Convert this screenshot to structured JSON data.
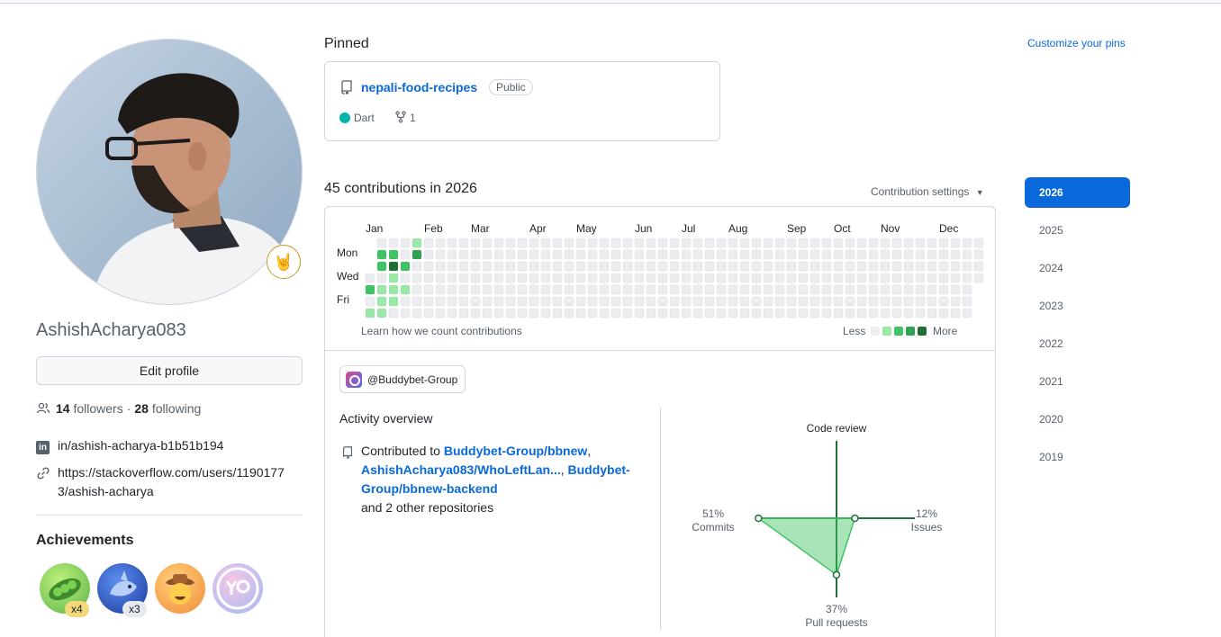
{
  "profile": {
    "username": "AshishAcharya083",
    "edit_label": "Edit profile",
    "followers_count": "14",
    "followers_label": "followers",
    "following_count": "28",
    "following_label": "following",
    "linkedin": "in/ashish-acharya-b1b51b194",
    "link_line1": "https://stackoverflow.com/users/1190177",
    "link_line2": "3/ashish-acharya",
    "status_emoji": "🤘"
  },
  "achievements": {
    "title": "Achievements",
    "badges": [
      {
        "name": "pea-pod",
        "count": "x4"
      },
      {
        "name": "shark",
        "count": "x3"
      },
      {
        "name": "cowboy",
        "count": ""
      },
      {
        "name": "yolo",
        "count": ""
      }
    ]
  },
  "pinned": {
    "title": "Pinned",
    "customize_label": "Customize your pins",
    "repo": {
      "name": "nepali-food-recipes",
      "visibility": "Public",
      "language": "Dart",
      "language_color": "#00B4AB",
      "forks": "1"
    }
  },
  "contributions": {
    "title": "45 contributions in 2026",
    "settings_label": "Contribution settings",
    "months": [
      "Jan",
      "Feb",
      "Mar",
      "Apr",
      "May",
      "Jun",
      "Jul",
      "Aug",
      "Sep",
      "Oct",
      "Nov",
      "Dec"
    ],
    "days": [
      "Mon",
      "Wed",
      "Fri"
    ],
    "learn_label": "Learn how we count contributions",
    "legend_less": "Less",
    "legend_more": "More",
    "level_colors": [
      "#ebedf0",
      "#9be9a8",
      "#40c463",
      "#30a14e",
      "#216e39"
    ]
  },
  "activity": {
    "org_label": "@Buddybet-Group",
    "title": "Activity overview",
    "contributed_to": "Contributed to",
    "repo1": "Buddybet-Group/bbnew",
    "repo2": "AshishAcharya083/WhoLeftLan...",
    "repo3": "Buddybet-Group/bbnew-backend",
    "others": "and 2 other repositories",
    "radar": {
      "code_review_label": "Code review",
      "commits_pct": "51%",
      "commits_label": "Commits",
      "issues_pct": "12%",
      "issues_label": "Issues",
      "pull_requests_pct": "37%",
      "pull_requests_label": "Pull requests",
      "values": {
        "commits": 51,
        "issues": 12,
        "pull_requests": 37,
        "code_review": 0
      }
    }
  },
  "years": [
    "2026",
    "2025",
    "2024",
    "2023",
    "2022",
    "2021",
    "2020",
    "2019"
  ],
  "selected_year": "2026"
}
